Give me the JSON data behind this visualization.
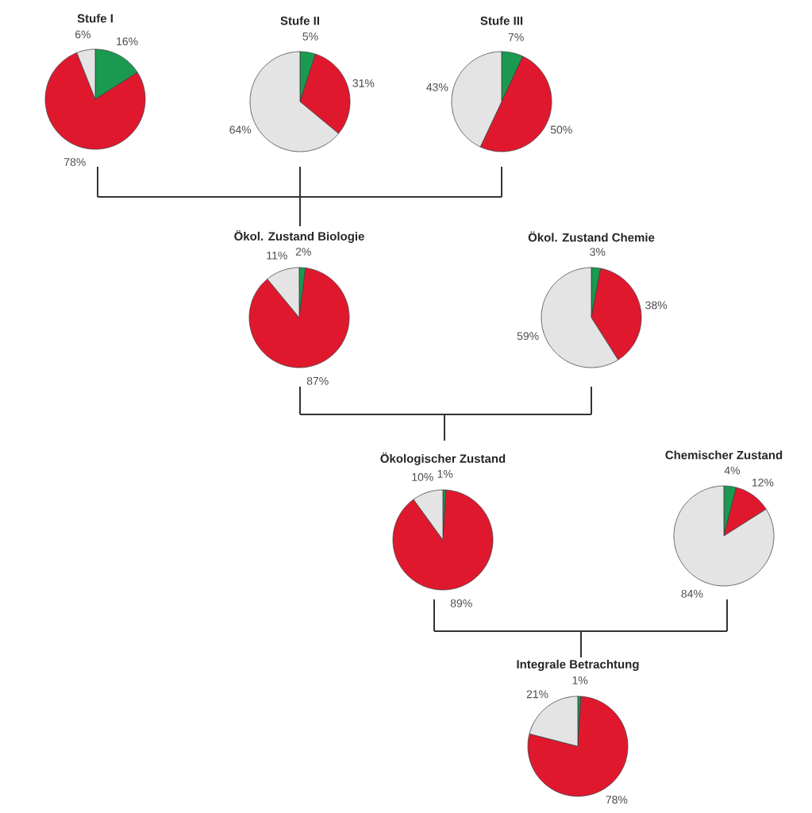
{
  "chart_data": [
    {
      "type": "pie",
      "title": "Stufe I",
      "categories": [
        null,
        null,
        null
      ],
      "values": [
        16,
        78,
        6
      ],
      "colors": [
        "#1a9a50",
        "#e0182e",
        "#e4e4e4"
      ],
      "value_labels": [
        "16%",
        "78%",
        "6%"
      ]
    },
    {
      "type": "pie",
      "title": "Stufe II",
      "categories": [
        null,
        null,
        null
      ],
      "values": [
        5,
        31,
        64
      ],
      "colors": [
        "#1a9a50",
        "#e0182e",
        "#e4e4e4"
      ],
      "value_labels": [
        "5%",
        "31%",
        "64%"
      ]
    },
    {
      "type": "pie",
      "title": "Stufe III",
      "categories": [
        null,
        null,
        null
      ],
      "values": [
        7,
        50,
        43
      ],
      "colors": [
        "#1a9a50",
        "#e0182e",
        "#e4e4e4"
      ],
      "value_labels": [
        "7%",
        "50%",
        "43%"
      ]
    },
    {
      "type": "pie",
      "title": "Ökol. Zustand Biologie",
      "categories": [
        null,
        null,
        null
      ],
      "values": [
        2,
        87,
        11
      ],
      "colors": [
        "#1a9a50",
        "#e0182e",
        "#e4e4e4"
      ],
      "value_labels": [
        "2%",
        "87%",
        "11%"
      ]
    },
    {
      "type": "pie",
      "title": "Ökol. Zustand Chemie",
      "categories": [
        null,
        null,
        null
      ],
      "values": [
        3,
        38,
        59
      ],
      "colors": [
        "#1a9a50",
        "#e0182e",
        "#e4e4e4"
      ],
      "value_labels": [
        "3%",
        "38%",
        "59%"
      ]
    },
    {
      "type": "pie",
      "title": "Ökologischer Zustand",
      "categories": [
        null,
        null,
        null
      ],
      "values": [
        1,
        89,
        10
      ],
      "colors": [
        "#1a9a50",
        "#e0182e",
        "#e4e4e4"
      ],
      "value_labels": [
        "1%",
        "89%",
        "10%"
      ]
    },
    {
      "type": "pie",
      "title": "Chemischer Zustand",
      "categories": [
        null,
        null,
        null
      ],
      "values": [
        4,
        12,
        84
      ],
      "colors": [
        "#1a9a50",
        "#e0182e",
        "#e4e4e4"
      ],
      "value_labels": [
        "4%",
        "12%",
        "84%"
      ]
    },
    {
      "type": "pie",
      "title": "Integrale Betrachtung",
      "categories": [
        null,
        null,
        null
      ],
      "values": [
        1,
        78,
        21
      ],
      "colors": [
        "#1a9a50",
        "#e0182e",
        "#e4e4e4"
      ],
      "value_labels": [
        "1%",
        "78%",
        "21%"
      ]
    }
  ]
}
